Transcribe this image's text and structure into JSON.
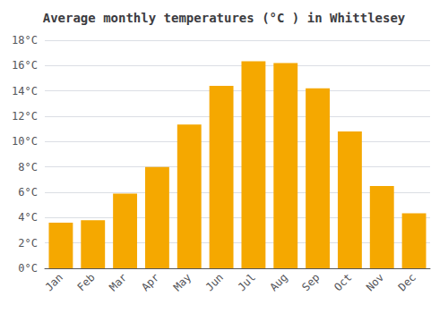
{
  "chart_data": {
    "type": "bar",
    "title": "Average monthly temperatures (°C ) in Whittlesey",
    "categories": [
      "Jan",
      "Feb",
      "Mar",
      "Apr",
      "May",
      "Jun",
      "Jul",
      "Aug",
      "Sep",
      "Oct",
      "Nov",
      "Dec"
    ],
    "values": [
      3.6,
      3.8,
      5.9,
      8.0,
      11.35,
      14.4,
      16.35,
      16.2,
      14.2,
      10.8,
      6.5,
      4.35
    ],
    "color": "#F5A800",
    "ylim": [
      0,
      18
    ],
    "yticks": [
      {
        "value": 0,
        "label": "0°C"
      },
      {
        "value": 2,
        "label": "2°C"
      },
      {
        "value": 4,
        "label": "4°C"
      },
      {
        "value": 6,
        "label": "6°C"
      },
      {
        "value": 8,
        "label": "8°C"
      },
      {
        "value": 10,
        "label": "10°C"
      },
      {
        "value": 12,
        "label": "12°C"
      },
      {
        "value": 14,
        "label": "14°C"
      },
      {
        "value": 16,
        "label": "16°C"
      },
      {
        "value": 18,
        "label": "18°C"
      }
    ],
    "grid": true
  }
}
